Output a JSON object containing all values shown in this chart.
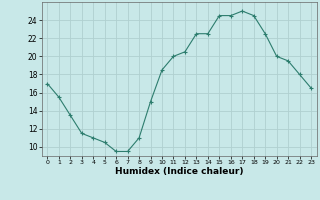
{
  "x": [
    0,
    1,
    2,
    3,
    4,
    5,
    6,
    7,
    8,
    9,
    10,
    11,
    12,
    13,
    14,
    15,
    16,
    17,
    18,
    19,
    20,
    21,
    22,
    23
  ],
  "y": [
    17,
    15.5,
    13.5,
    11.5,
    11,
    10.5,
    9.5,
    9.5,
    11,
    15,
    18.5,
    20,
    20.5,
    22.5,
    22.5,
    24.5,
    24.5,
    25,
    24.5,
    22.5,
    20,
    19.5,
    18,
    16.5
  ],
  "line_color": "#2d7d6e",
  "marker": "+",
  "bg_color": "#c8e8e8",
  "grid_color": "#b0d0d0",
  "xlabel": "Humidex (Indice chaleur)",
  "ylim": [
    9,
    26
  ],
  "yticks": [
    10,
    12,
    14,
    16,
    18,
    20,
    22,
    24
  ],
  "xlim": [
    -0.5,
    23.5
  ],
  "xticks": [
    0,
    1,
    2,
    3,
    4,
    5,
    6,
    7,
    8,
    9,
    10,
    11,
    12,
    13,
    14,
    15,
    16,
    17,
    18,
    19,
    20,
    21,
    22,
    23
  ]
}
